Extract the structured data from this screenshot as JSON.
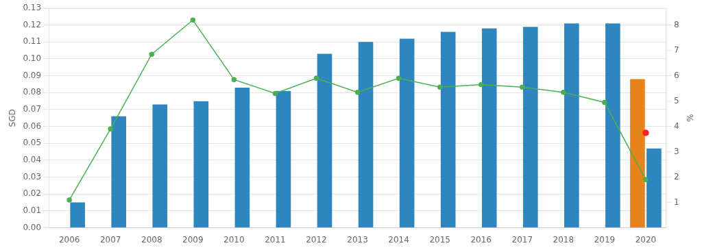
{
  "chart_data": {
    "type": "bar",
    "categories": [
      "2006",
      "2007",
      "2008",
      "2009",
      "2010",
      "2011",
      "2012",
      "2013",
      "2014",
      "2015",
      "2016",
      "2017",
      "2018",
      "2019",
      "2020"
    ],
    "series": [
      {
        "type": "bar",
        "color": "#2E86C1",
        "values": [
          0.015,
          0.066,
          0.073,
          0.075,
          0.083,
          0.081,
          0.103,
          0.11,
          0.112,
          0.116,
          0.118,
          0.119,
          0.121,
          0.121,
          0.047
        ]
      },
      {
        "type": "bar",
        "color": "#E8821A",
        "values": [
          0.0,
          0.0,
          0.0,
          0.0,
          0.0,
          0.0,
          0.0,
          0.0,
          0.0,
          0.0,
          0.0,
          0.0,
          0.0,
          0.0,
          0.088
        ]
      },
      {
        "type": "line",
        "color": "#4CAF50",
        "axis": "y2",
        "marker": "circle",
        "line_style": "solid",
        "values": [
          1.1,
          3.9,
          6.85,
          8.2,
          5.85,
          5.3,
          5.9,
          5.35,
          5.9,
          5.55,
          5.65,
          5.55,
          5.35,
          4.95,
          1.9
        ]
      },
      {
        "type": "line",
        "color": "#FF2020",
        "axis": "y2",
        "marker": "circle",
        "line_style": "none",
        "values": [
          null,
          null,
          null,
          null,
          null,
          null,
          null,
          null,
          null,
          null,
          null,
          null,
          null,
          null,
          3.75
        ]
      }
    ],
    "ylabel": "SGD",
    "y2label": "%",
    "ylim": [
      0,
      0.13
    ],
    "yticks": [
      {
        "value": 0,
        "label": "0.00"
      },
      {
        "value": 0.01,
        "label": "0.01"
      },
      {
        "value": 0.02,
        "label": "0.02"
      },
      {
        "value": 0.03,
        "label": "0.03"
      },
      {
        "value": 0.04,
        "label": "0.04"
      },
      {
        "value": 0.05,
        "label": "0.05"
      },
      {
        "value": 0.06,
        "label": "0.06"
      },
      {
        "value": 0.07,
        "label": "0.07"
      },
      {
        "value": 0.08,
        "label": "0.08"
      },
      {
        "value": 0.09,
        "label": "0.09"
      },
      {
        "value": 0.1,
        "label": "0.10"
      },
      {
        "value": 0.11,
        "label": "0.11"
      },
      {
        "value": 0.12,
        "label": "0.12"
      },
      {
        "value": 0.13,
        "label": "0.13"
      }
    ],
    "y2lim": [
      0,
      8.667
    ],
    "y2ticks": [
      1.0,
      2.0,
      3.0,
      4.0,
      5.0,
      6.0,
      7.0,
      8.0
    ],
    "grid": true
  }
}
